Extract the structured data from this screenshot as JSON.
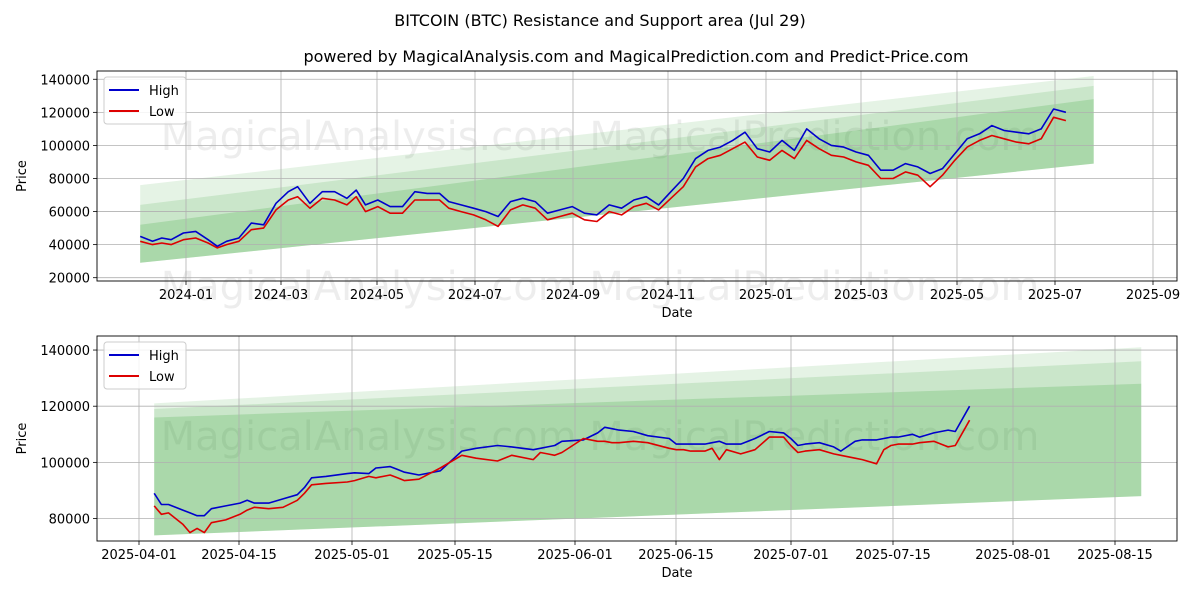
{
  "title": "BITCOIN (BTC) Resistance and Support area (Jul 29)",
  "subtitle": "powered by MagicalAnalysis.com and MagicalPrediction.com and Predict-Price.com",
  "watermark": "MagicalAnalysis.com     MagicalPrediction.com",
  "colors": {
    "high": "#0000cc",
    "low": "#dd0000",
    "band": "#2ca02c",
    "grid": "#b0b0b0"
  },
  "chart_data": [
    {
      "type": "line",
      "name": "full-range",
      "xlabel": "Date",
      "ylabel": "Price",
      "x_ticks": [
        "2024-01",
        "2024-03",
        "2024-05",
        "2024-07",
        "2024-09",
        "2024-11",
        "2025-01",
        "2025-03",
        "2025-05",
        "2025-07",
        "2025-09"
      ],
      "y_ticks": [
        "20000",
        "40000",
        "60000",
        "80000",
        "100000",
        "120000",
        "140000"
      ],
      "ylim": [
        18000,
        145000
      ],
      "legend": [
        "High",
        "Low"
      ],
      "legend_position": "top-left",
      "bands": [
        {
          "start": [
            0,
            76000
          ],
          "end": [
            618,
            142000
          ],
          "alpha": 0.12
        },
        {
          "start": [
            0,
            64000
          ],
          "end": [
            618,
            136000
          ],
          "alpha": 0.15
        },
        {
          "start": [
            0,
            52000
          ],
          "end": [
            618,
            128000
          ],
          "alpha": 0.2
        },
        {
          "start": [
            0,
            29000
          ],
          "end": [
            618,
            89000
          ],
          "alpha": 0.25
        }
      ],
      "series": [
        {
          "name": "High",
          "x": [
            0,
            8,
            14,
            20,
            28,
            36,
            44,
            50,
            56,
            64,
            72,
            80,
            88,
            96,
            102,
            110,
            118,
            126,
            134,
            140,
            146,
            154,
            162,
            170,
            178,
            186,
            194,
            200,
            208,
            216,
            224,
            232,
            240,
            248,
            256,
            264,
            272,
            280,
            288,
            296,
            304,
            312,
            320,
            328,
            336,
            344,
            352,
            360,
            368,
            376,
            384,
            392,
            400,
            408,
            416,
            424,
            432,
            440,
            448,
            456,
            464,
            472,
            480,
            488,
            496,
            504,
            512,
            520,
            528,
            536,
            544,
            552,
            560,
            568,
            576,
            584,
            592,
            600
          ],
          "values": [
            45000,
            42000,
            44000,
            43000,
            47000,
            48000,
            43000,
            39000,
            42000,
            44000,
            53000,
            52000,
            65000,
            72000,
            75000,
            65000,
            72000,
            72000,
            68000,
            73000,
            64000,
            67000,
            63000,
            63000,
            72000,
            71000,
            71000,
            66000,
            64000,
            62000,
            60000,
            57000,
            66000,
            68000,
            66000,
            59000,
            61000,
            63000,
            59000,
            58000,
            64000,
            62000,
            67000,
            69000,
            64000,
            72000,
            80000,
            92000,
            97000,
            99000,
            103000,
            108000,
            98000,
            96000,
            103000,
            97000,
            110000,
            104000,
            100000,
            99000,
            96000,
            94000,
            85000,
            85000,
            89000,
            87000,
            83000,
            86000,
            95000,
            104000,
            107000,
            112000,
            109000,
            108000,
            107000,
            110000,
            122000,
            120000
          ]
        },
        {
          "name": "Low",
          "x": [
            0,
            8,
            14,
            20,
            28,
            36,
            44,
            50,
            56,
            64,
            72,
            80,
            88,
            96,
            102,
            110,
            118,
            126,
            134,
            140,
            146,
            154,
            162,
            170,
            178,
            186,
            194,
            200,
            208,
            216,
            224,
            232,
            240,
            248,
            256,
            264,
            272,
            280,
            288,
            296,
            304,
            312,
            320,
            328,
            336,
            344,
            352,
            360,
            368,
            376,
            384,
            392,
            400,
            408,
            416,
            424,
            432,
            440,
            448,
            456,
            464,
            472,
            480,
            488,
            496,
            504,
            512,
            520,
            528,
            536,
            544,
            552,
            560,
            568,
            576,
            584,
            592,
            600
          ],
          "values": [
            42000,
            40000,
            41000,
            40000,
            43000,
            44000,
            41000,
            38000,
            40000,
            42000,
            49000,
            50000,
            61000,
            67000,
            69000,
            62000,
            68000,
            67000,
            64000,
            69000,
            60000,
            63000,
            59000,
            59000,
            67000,
            67000,
            67000,
            62000,
            60000,
            58000,
            55000,
            51000,
            61000,
            64000,
            62000,
            55000,
            57000,
            59000,
            55000,
            54000,
            60000,
            58000,
            63000,
            65000,
            61000,
            68000,
            75000,
            87000,
            92000,
            94000,
            98000,
            102000,
            93000,
            91000,
            97000,
            92000,
            103000,
            98000,
            94000,
            93000,
            90000,
            88000,
            80000,
            80000,
            84000,
            82000,
            75000,
            82000,
            91000,
            99000,
            103000,
            106000,
            104000,
            102000,
            101000,
            104000,
            117000,
            115000
          ]
        }
      ]
    },
    {
      "type": "line",
      "name": "zoomed",
      "xlabel": "Date",
      "ylabel": "Price",
      "x_ticks": [
        "2025-04-01",
        "2025-04-15",
        "2025-05-01",
        "2025-05-15",
        "2025-06-01",
        "2025-06-15",
        "2025-07-01",
        "2025-07-15",
        "2025-08-01",
        "2025-08-15"
      ],
      "y_ticks": [
        "80000",
        "100000",
        "120000",
        "140000"
      ],
      "ylim": [
        72000,
        145000
      ],
      "legend": [
        "High",
        "Low"
      ],
      "legend_position": "top-left",
      "bands": [
        {
          "start": [
            0,
            121000
          ],
          "end": [
            138,
            141000
          ],
          "alpha": 0.12
        },
        {
          "start": [
            0,
            119000
          ],
          "end": [
            138,
            136000
          ],
          "alpha": 0.15
        },
        {
          "start": [
            0,
            116000
          ],
          "end": [
            138,
            128000
          ],
          "alpha": 0.2
        },
        {
          "start": [
            0,
            74000
          ],
          "end": [
            138,
            88000
          ],
          "alpha": 0.25
        }
      ],
      "series": [
        {
          "name": "High",
          "x": [
            0,
            1,
            2,
            4,
            5,
            6,
            7,
            8,
            10,
            12,
            13,
            14,
            16,
            18,
            20,
            21,
            22,
            24,
            27,
            28,
            30,
            31,
            33,
            34,
            35,
            37,
            40,
            43,
            45,
            48,
            50,
            53,
            54,
            55,
            56,
            57,
            60,
            62,
            63,
            64,
            65,
            67,
            69,
            72,
            73,
            74,
            75,
            77,
            78,
            79,
            80,
            82,
            84,
            86,
            88,
            89,
            90,
            91,
            93,
            95,
            96,
            98,
            99,
            101,
            102,
            103,
            104,
            106,
            107,
            109,
            111,
            112,
            114
          ],
          "values": [
            89000,
            85000,
            85000,
            83000,
            82000,
            81000,
            81000,
            83500,
            84500,
            85500,
            86500,
            85500,
            85500,
            87000,
            88500,
            91000,
            94500,
            95000,
            96000,
            96300,
            96000,
            98000,
            98500,
            97500,
            96500,
            95500,
            97000,
            104000,
            105000,
            106000,
            105500,
            104500,
            105000,
            105500,
            106000,
            107500,
            108000,
            110500,
            112500,
            112000,
            111500,
            111000,
            109500,
            108500,
            106500,
            106500,
            106500,
            106500,
            107000,
            107500,
            106500,
            106500,
            108500,
            111000,
            110500,
            108500,
            106000,
            106500,
            107000,
            105500,
            104000,
            107500,
            108000,
            108000,
            108500,
            109000,
            109000,
            110000,
            109000,
            110500,
            111500,
            111000,
            120000
          ]
        },
        {
          "name": "Low",
          "x": [
            0,
            1,
            2,
            4,
            5,
            6,
            7,
            8,
            10,
            12,
            13,
            14,
            16,
            18,
            20,
            21,
            22,
            24,
            27,
            28,
            30,
            31,
            33,
            34,
            35,
            37,
            40,
            43,
            45,
            48,
            50,
            53,
            54,
            55,
            56,
            57,
            60,
            62,
            63,
            64,
            65,
            67,
            69,
            72,
            73,
            74,
            75,
            77,
            78,
            79,
            80,
            82,
            84,
            86,
            88,
            89,
            90,
            91,
            93,
            95,
            96,
            98,
            99,
            101,
            102,
            103,
            104,
            106,
            107,
            109,
            111,
            112,
            114
          ],
          "values": [
            84500,
            81500,
            82000,
            78000,
            75000,
            76500,
            75000,
            78500,
            79500,
            81500,
            83000,
            84000,
            83500,
            84000,
            86500,
            89000,
            92000,
            92500,
            93000,
            93500,
            95000,
            94500,
            95500,
            94500,
            93500,
            94000,
            98000,
            102500,
            101500,
            100500,
            102500,
            101000,
            103500,
            103000,
            102500,
            103500,
            108500,
            107500,
            107500,
            107000,
            107000,
            107500,
            107000,
            105000,
            104500,
            104500,
            104000,
            104000,
            105000,
            101000,
            104500,
            103000,
            104500,
            109000,
            109000,
            106000,
            103500,
            104000,
            104500,
            103000,
            102500,
            101500,
            101000,
            99500,
            104500,
            106000,
            106500,
            106500,
            107000,
            107500,
            105500,
            106000,
            115000
          ]
        }
      ]
    }
  ]
}
